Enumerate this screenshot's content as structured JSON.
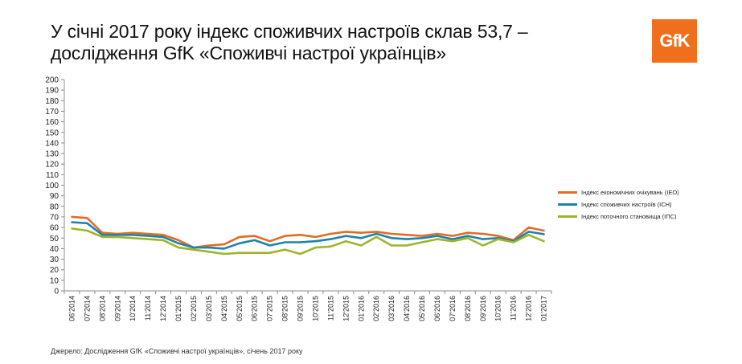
{
  "header": {
    "title_line1": "У січні 2017 року індекс споживчих настроїв склав 53,7 –",
    "title_line2": "дослідження GfK «Споживчі настрої українців»",
    "logo_text": "GfK"
  },
  "footer": {
    "source": "Джерело: Дослідження GfK «Споживчі настрої українців», січень 2017 року"
  },
  "chart_data": {
    "type": "line",
    "title": "У січні 2017 року індекс споживчих настроїв склав 53,7 – дослідження GfK «Споживчі настрої українців»",
    "xlabel": "",
    "ylabel": "",
    "ylim": [
      0,
      200
    ],
    "yticks": [
      0,
      10,
      20,
      30,
      40,
      50,
      60,
      70,
      80,
      90,
      100,
      110,
      120,
      130,
      140,
      150,
      160,
      170,
      180,
      190,
      200
    ],
    "grid": false,
    "legend_position": "right",
    "categories": [
      "06'2014",
      "07'2014",
      "08'2014",
      "09'2014",
      "10'2014",
      "11'2014",
      "12'2014",
      "01'2015",
      "02'2015",
      "03'2015",
      "04'2015",
      "05'2015",
      "06'2015",
      "07'2015",
      "08'2015",
      "09'2015",
      "10'2015",
      "11'2015",
      "12'2015",
      "01'2016",
      "02'2016",
      "03'2016",
      "04'2016",
      "05'2016",
      "06'2016",
      "07'2016",
      "08'2016",
      "09'2016",
      "10'2016",
      "11'2016",
      "12'2016",
      "01'2017"
    ],
    "series": [
      {
        "name": "Індекс економічних очікувань (ІЕО)",
        "color": "#e36c23",
        "values": [
          70,
          69,
          55,
          54,
          55,
          54,
          53,
          48,
          41,
          43,
          44,
          51,
          52,
          47,
          52,
          53,
          51,
          54,
          56,
          55,
          56,
          54,
          53,
          52,
          54,
          52,
          55,
          54,
          52,
          48,
          60,
          57
        ]
      },
      {
        "name": "Індекс споживчих настроїв (ІСН)",
        "color": "#1b83ad",
        "values": [
          65,
          64,
          53,
          53,
          53,
          52,
          51,
          45,
          41,
          41,
          40,
          45,
          48,
          43,
          46,
          46,
          47,
          49,
          52,
          50,
          54,
          50,
          49,
          50,
          52,
          49,
          52,
          49,
          50,
          47,
          56,
          53.7
        ]
      },
      {
        "name": "Індекс поточного становища (ІПС)",
        "color": "#9cb52b",
        "values": [
          59,
          57,
          51,
          51,
          50,
          49,
          48,
          41,
          39,
          37,
          35,
          36,
          36,
          36,
          39,
          35,
          41,
          42,
          47,
          43,
          51,
          43,
          43,
          46,
          49,
          47,
          50,
          43,
          49,
          46,
          53,
          47
        ]
      }
    ]
  }
}
